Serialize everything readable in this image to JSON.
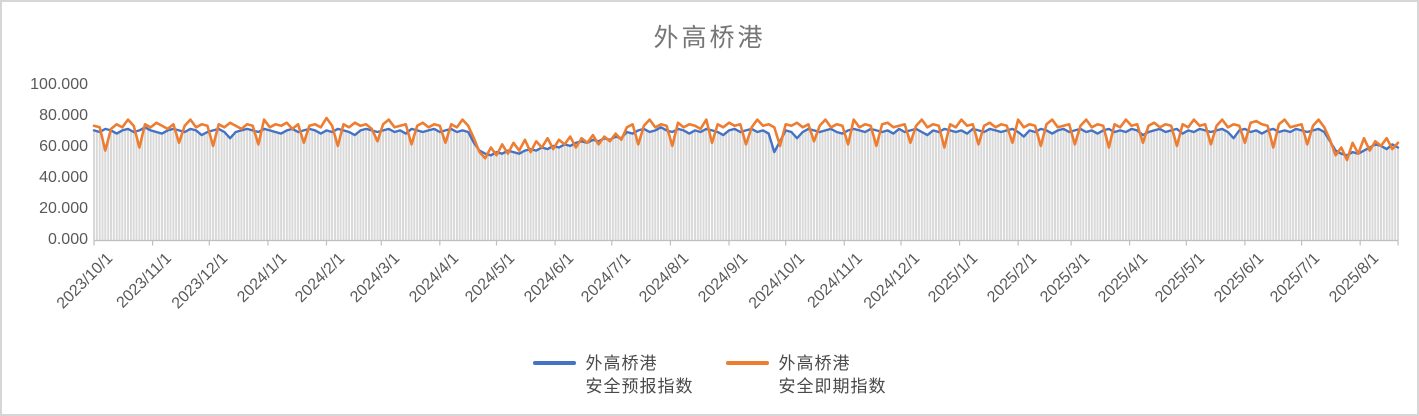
{
  "title": "外高桥港",
  "chart_data": {
    "type": "line",
    "title": "外高桥港",
    "xlabel": "",
    "ylabel": "",
    "grid": false,
    "legend_position": "bottom",
    "y_axis": {
      "min": 0,
      "max": 100,
      "tick_step": 20,
      "tick_labels": [
        "0.000",
        "20.000",
        "40.000",
        "60.000",
        "80.000",
        "100.000"
      ]
    },
    "x_axis": {
      "tick_labels": [
        "2023/10/1",
        "2023/11/1",
        "2023/12/1",
        "2024/1/1",
        "2024/2/1",
        "2024/3/1",
        "2024/4/1",
        "2024/5/1",
        "2024/6/1",
        "2024/7/1",
        "2024/8/1",
        "2024/9/1",
        "2024/10/1",
        "2024/11/1",
        "2024/12/1",
        "2025/1/1",
        "2025/2/1",
        "2025/3/1",
        "2025/4/1",
        "2025/5/1",
        "2025/6/1",
        "2025/7/1",
        "2025/8/1"
      ],
      "start_date": "2023/10/1",
      "span_days": 690,
      "label_rotation_deg": 45
    },
    "sampling_note": "Daily index values estimated from pixels, down-sampled to one point every 3 days",
    "sample_step_days": 3,
    "drop_columns": {
      "color": "#d9d9d9",
      "description": "thin light-gray vertical drop columns from the lower of the two series down to the zero axis, one per day"
    },
    "series": [
      {
        "name": "外高桥港 安全预报指数",
        "color": "#4472c4",
        "values": [
          71,
          70,
          72,
          71,
          69,
          71,
          72,
          70,
          71,
          73,
          71,
          70,
          69,
          71,
          72,
          71,
          70,
          72,
          71,
          68,
          70,
          71,
          72,
          70,
          66,
          70,
          71,
          72,
          71,
          70,
          72,
          71,
          70,
          69,
          71,
          72,
          70,
          71,
          72,
          71,
          69,
          71,
          70,
          72,
          71,
          70,
          68,
          71,
          72,
          71,
          70,
          71,
          72,
          70,
          71,
          69,
          72,
          71,
          70,
          71,
          72,
          70,
          71,
          72,
          70,
          71,
          70,
          63,
          58,
          56,
          55,
          57,
          56,
          58,
          57,
          56,
          58,
          59,
          58,
          60,
          59,
          61,
          60,
          62,
          61,
          63,
          64,
          63,
          65,
          64,
          66,
          65,
          67,
          66,
          70,
          69,
          71,
          72,
          70,
          71,
          73,
          71,
          70,
          72,
          71,
          69,
          71,
          70,
          72,
          71,
          70,
          68,
          71,
          72,
          70,
          71,
          72,
          70,
          71,
          69,
          57,
          64,
          71,
          70,
          66,
          70,
          72,
          71,
          70,
          71,
          72,
          70,
          69,
          71,
          72,
          71,
          70,
          72,
          71,
          70,
          71,
          69,
          72,
          70,
          71,
          72,
          70,
          68,
          71,
          70,
          72,
          71,
          70,
          71,
          69,
          72,
          71,
          70,
          72,
          71,
          70,
          71,
          72,
          70,
          67,
          71,
          70,
          72,
          71,
          69,
          71,
          72,
          70,
          71,
          72,
          70,
          71,
          69,
          71,
          72,
          70,
          71,
          70,
          72,
          71,
          68,
          70,
          71,
          72,
          70,
          71,
          72,
          69,
          71,
          70,
          72,
          71,
          70,
          71,
          72,
          70,
          66,
          71,
          72,
          70,
          71,
          69,
          71,
          72,
          70,
          71,
          70,
          72,
          71,
          70,
          71,
          72,
          70,
          64,
          58,
          56,
          55,
          57,
          56,
          58,
          60,
          62,
          61,
          59,
          62,
          60
        ]
      },
      {
        "name": "外高桥港 安全即期指数",
        "color": "#ed7d31",
        "values": [
          74,
          73,
          58,
          72,
          75,
          73,
          78,
          74,
          60,
          75,
          73,
          76,
          74,
          72,
          75,
          63,
          74,
          78,
          73,
          75,
          74,
          61,
          75,
          73,
          76,
          74,
          72,
          75,
          74,
          62,
          78,
          73,
          75,
          74,
          76,
          72,
          75,
          63,
          74,
          75,
          73,
          79,
          74,
          61,
          75,
          73,
          76,
          74,
          75,
          72,
          64,
          75,
          78,
          73,
          74,
          75,
          62,
          74,
          76,
          73,
          75,
          74,
          63,
          75,
          73,
          78,
          74,
          66,
          57,
          53,
          60,
          55,
          62,
          56,
          63,
          58,
          65,
          57,
          64,
          60,
          66,
          59,
          65,
          62,
          67,
          60,
          66,
          63,
          68,
          62,
          67,
          64,
          69,
          65,
          73,
          75,
          62,
          74,
          78,
          73,
          75,
          74,
          61,
          76,
          73,
          75,
          74,
          72,
          78,
          63,
          75,
          73,
          76,
          74,
          75,
          62,
          73,
          78,
          74,
          75,
          73,
          61,
          75,
          74,
          76,
          73,
          75,
          64,
          74,
          78,
          73,
          75,
          74,
          62,
          78,
          73,
          75,
          74,
          61,
          75,
          76,
          73,
          74,
          75,
          63,
          74,
          78,
          73,
          75,
          74,
          60,
          75,
          73,
          78,
          74,
          75,
          62,
          74,
          76,
          73,
          75,
          74,
          63,
          78,
          73,
          75,
          74,
          61,
          75,
          78,
          73,
          74,
          75,
          62,
          74,
          78,
          73,
          75,
          74,
          60,
          75,
          73,
          78,
          74,
          75,
          63,
          74,
          76,
          73,
          75,
          74,
          61,
          75,
          73,
          78,
          74,
          75,
          62,
          74,
          78,
          73,
          75,
          74,
          63,
          76,
          77,
          75,
          74,
          60,
          75,
          78,
          73,
          74,
          75,
          62,
          74,
          78,
          73,
          65,
          55,
          60,
          52,
          63,
          56,
          66,
          58,
          64,
          61,
          66,
          59,
          63
        ]
      }
    ]
  },
  "legend": {
    "items": [
      {
        "line1": "外高桥港",
        "line2": "安全预报指数",
        "color": "#4472c4"
      },
      {
        "line1": "外高桥港",
        "line2": "安全即期指数",
        "color": "#ed7d31"
      }
    ]
  },
  "colors": {
    "forecast_blue": "#4472c4",
    "spot_orange": "#ed7d31",
    "drop_column_gray": "#d9d9d9",
    "axis_line": "#bfbfbf",
    "tick_text": "#595959",
    "title_text": "#767676"
  }
}
